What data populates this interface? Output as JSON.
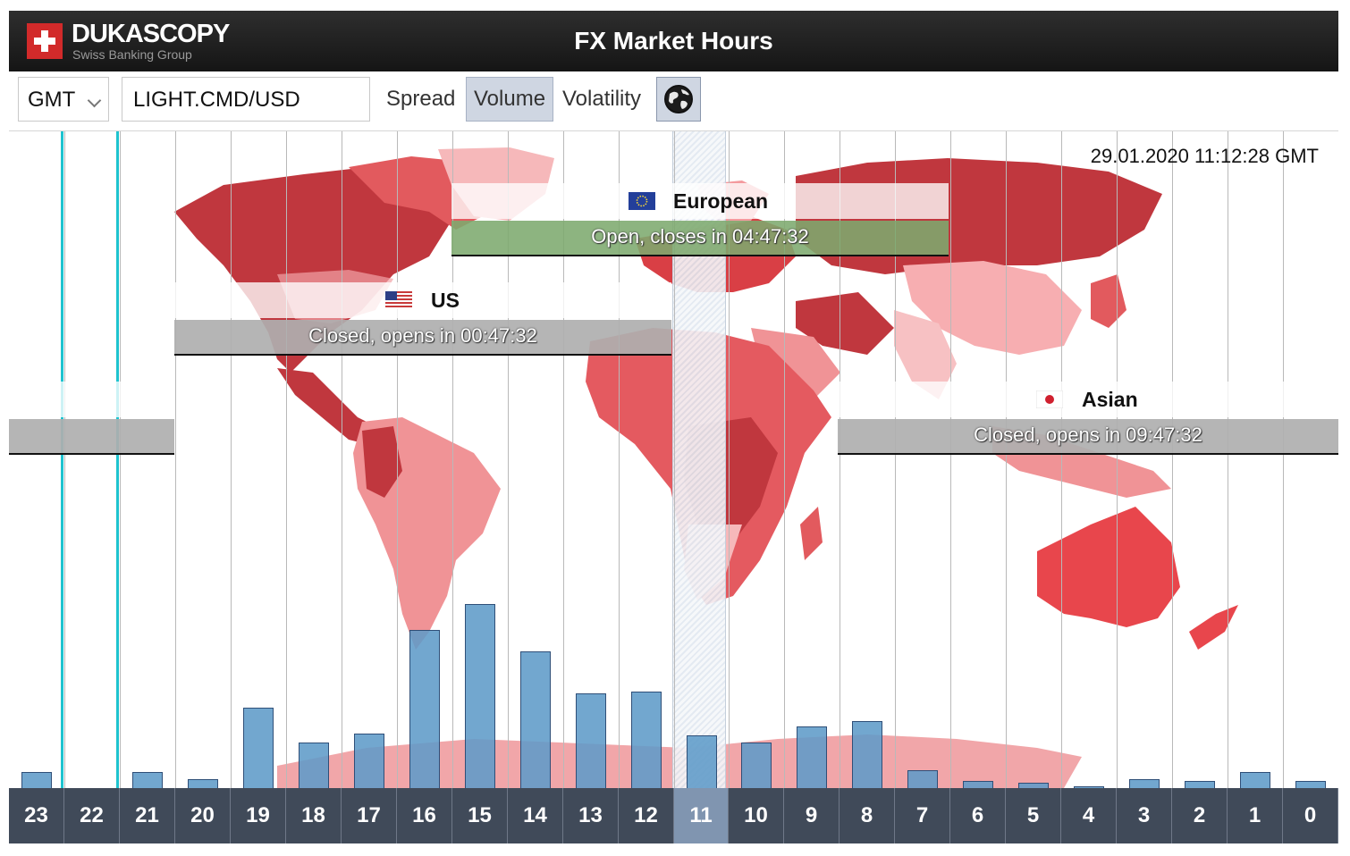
{
  "header": {
    "brand": "DUKASCOPY",
    "brand_sub": "Swiss Banking Group",
    "title": "FX Market Hours",
    "brand_color": "#d22a2a"
  },
  "toolbar": {
    "timezone": "GMT",
    "instrument": "LIGHT.CMD/USD",
    "spread_label": "Spread",
    "volume_label": "Volume",
    "volatility_label": "Volatility",
    "active_mode": "Volume",
    "globe_icon": "globe-icon"
  },
  "clock": "29.01.2020 11:12:28 GMT",
  "sessions": {
    "european": {
      "name": "European",
      "status": "Open, closes in 04:47:32",
      "state": "open",
      "color": "#7daa6e"
    },
    "us": {
      "name": "US",
      "status": "Closed, opens in 00:47:32",
      "state": "closed",
      "color": "#afafaf"
    },
    "asian": {
      "name": "Asian",
      "status": "Closed, opens in 09:47:32",
      "state": "closed",
      "color": "#afafaf"
    }
  },
  "hours": [
    "23",
    "22",
    "21",
    "20",
    "19",
    "18",
    "17",
    "16",
    "15",
    "14",
    "13",
    "12",
    "11",
    "10",
    "9",
    "8",
    "7",
    "6",
    "5",
    "4",
    "3",
    "2",
    "1",
    "0"
  ],
  "current_hour": "11",
  "chart_data": {
    "type": "bar",
    "title": "",
    "categories": [
      "23",
      "22",
      "21",
      "20",
      "19",
      "18",
      "17",
      "16",
      "15",
      "14",
      "13",
      "12",
      "11",
      "10",
      "9",
      "8",
      "7",
      "6",
      "5",
      "4",
      "3",
      "2",
      "1",
      "0"
    ],
    "values": [
      9,
      0,
      9,
      5,
      44,
      25,
      30,
      87,
      101,
      75,
      52,
      53,
      29,
      25,
      34,
      37,
      10,
      4,
      3,
      1,
      5,
      4,
      9,
      4
    ],
    "xlabel": "",
    "ylabel": "",
    "ylim": [
      0,
      112
    ],
    "color": "#5f9bc8"
  }
}
